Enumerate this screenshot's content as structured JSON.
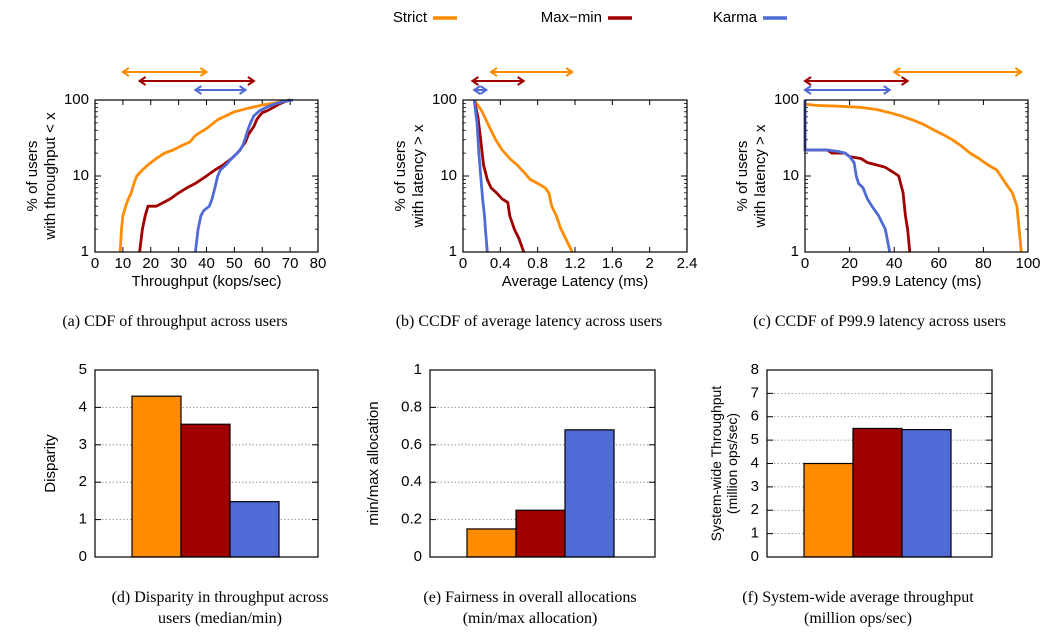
{
  "colors": {
    "strict": "#ff8c00",
    "maxmin": "#a00000",
    "karma": "#4f6bd6",
    "grid": "#888888"
  },
  "legend": [
    {
      "name": "Strict",
      "color": "#ff8c00"
    },
    {
      "name": "Max−min",
      "color": "#a00000"
    },
    {
      "name": "Karma",
      "color": "#4f6bd6"
    }
  ],
  "captions": {
    "a": [
      "(a)  CDF of throughput across users"
    ],
    "b": [
      "(b)  CCDF of average latency across users"
    ],
    "c": [
      "(c)  CCDF of P99.9 latency across users"
    ],
    "d": [
      "(d)  Disparity in throughput across",
      "users (median/min)"
    ],
    "e": [
      "(e)  Fairness in overall allocations",
      "(min/max allocation)"
    ],
    "f": [
      "(f)  System-wide average throughput",
      "(million ops/sec)"
    ]
  },
  "chart_data": [
    {
      "id": "a",
      "type": "line",
      "log_y": true,
      "xlabel": "Throughput (kops/sec)",
      "ylabel": [
        "% of users",
        "with throughput  <  x"
      ],
      "xlim": [
        0,
        80
      ],
      "ylim": [
        1,
        100
      ],
      "xticks": [
        "0",
        "10",
        "20",
        "30",
        "40",
        "50",
        "60",
        "70",
        "80"
      ],
      "yticks": [
        "1",
        "10",
        "100"
      ],
      "ranges": [
        {
          "series": "Strict",
          "from": 10,
          "to": 40
        },
        {
          "series": "Max−min",
          "from": 16,
          "to": 57
        },
        {
          "series": "Karma",
          "from": 36,
          "to": 54
        }
      ],
      "series": [
        {
          "name": "Strict",
          "points": [
            [
              9,
              1
            ],
            [
              9.5,
              2
            ],
            [
              10,
              3
            ],
            [
              11,
              4
            ],
            [
              12,
              5
            ],
            [
              13,
              6
            ],
            [
              14,
              8
            ],
            [
              15,
              10
            ],
            [
              17,
              12
            ],
            [
              19,
              14
            ],
            [
              22,
              17
            ],
            [
              25,
              20
            ],
            [
              28,
              22
            ],
            [
              31,
              25
            ],
            [
              34,
              28
            ],
            [
              36,
              34
            ],
            [
              38,
              38
            ],
            [
              40,
              42
            ],
            [
              42,
              48
            ],
            [
              44,
              55
            ],
            [
              47,
              62
            ],
            [
              50,
              70
            ],
            [
              55,
              78
            ],
            [
              60,
              86
            ],
            [
              65,
              92
            ],
            [
              68,
              97
            ],
            [
              70,
              100
            ]
          ]
        },
        {
          "name": "Max−min",
          "points": [
            [
              16,
              1
            ],
            [
              17,
              2
            ],
            [
              18,
              3
            ],
            [
              19,
              4
            ],
            [
              22,
              4
            ],
            [
              27,
              5
            ],
            [
              30,
              6
            ],
            [
              33,
              7
            ],
            [
              36,
              8
            ],
            [
              40,
              10
            ],
            [
              43,
              12
            ],
            [
              46,
              14
            ],
            [
              49,
              17
            ],
            [
              51,
              20
            ],
            [
              52,
              22
            ],
            [
              53,
              25
            ],
            [
              54,
              28
            ],
            [
              55,
              35
            ],
            [
              57,
              45
            ],
            [
              58,
              55
            ],
            [
              59,
              62
            ],
            [
              60,
              68
            ],
            [
              62,
              73
            ],
            [
              64,
              80
            ],
            [
              66,
              88
            ],
            [
              68,
              95
            ],
            [
              70,
              100
            ]
          ]
        },
        {
          "name": "Karma",
          "points": [
            [
              36,
              1
            ],
            [
              37,
              2
            ],
            [
              38,
              3
            ],
            [
              39,
              3.5
            ],
            [
              41,
              4
            ],
            [
              42,
              5
            ],
            [
              43,
              7
            ],
            [
              44,
              10
            ],
            [
              45,
              12
            ],
            [
              47,
              14
            ],
            [
              49,
              17
            ],
            [
              51,
              20
            ],
            [
              52,
              22
            ],
            [
              53,
              25
            ],
            [
              54,
              32
            ],
            [
              55,
              42
            ],
            [
              56,
              52
            ],
            [
              57,
              62
            ],
            [
              59,
              72
            ],
            [
              62,
              82
            ],
            [
              65,
              90
            ],
            [
              68,
              96
            ],
            [
              71,
              100
            ]
          ]
        }
      ]
    },
    {
      "id": "b",
      "type": "line",
      "log_y": true,
      "xlabel": "Average Latency (ms)",
      "ylabel": [
        "% of users",
        "with latency  >  x"
      ],
      "xlim": [
        0,
        2.4
      ],
      "ylim": [
        1,
        100
      ],
      "xticks": [
        "0",
        "0.4",
        "0.8",
        "1.2",
        "1.6",
        "2",
        "2.4"
      ],
      "yticks": [
        "1",
        "10",
        "100"
      ],
      "ranges": [
        {
          "series": "Strict",
          "from": 0.3,
          "to": 1.17
        },
        {
          "series": "Max−min",
          "from": 0.1,
          "to": 0.65
        },
        {
          "series": "Karma",
          "from": 0.12,
          "to": 0.25
        }
      ],
      "series": [
        {
          "name": "Strict",
          "points": [
            [
              0.12,
              100
            ],
            [
              0.2,
              72
            ],
            [
              0.28,
              45
            ],
            [
              0.35,
              30
            ],
            [
              0.42,
              22
            ],
            [
              0.5,
              17
            ],
            [
              0.58,
              14
            ],
            [
              0.66,
              11
            ],
            [
              0.72,
              9
            ],
            [
              0.8,
              8
            ],
            [
              0.88,
              7
            ],
            [
              0.92,
              6
            ],
            [
              0.95,
              4
            ],
            [
              1.0,
              3
            ],
            [
              1.05,
              2
            ],
            [
              1.1,
              1.5
            ],
            [
              1.17,
              1
            ]
          ]
        },
        {
          "name": "Max−min",
          "points": [
            [
              0.12,
              100
            ],
            [
              0.16,
              60
            ],
            [
              0.19,
              30
            ],
            [
              0.22,
              14
            ],
            [
              0.26,
              9
            ],
            [
              0.3,
              7
            ],
            [
              0.36,
              6
            ],
            [
              0.42,
              5
            ],
            [
              0.48,
              4.5
            ],
            [
              0.5,
              3
            ],
            [
              0.55,
              2
            ],
            [
              0.6,
              1.5
            ],
            [
              0.65,
              1
            ]
          ]
        },
        {
          "name": "Karma",
          "points": [
            [
              0.12,
              100
            ],
            [
              0.15,
              50
            ],
            [
              0.17,
              20
            ],
            [
              0.19,
              10
            ],
            [
              0.21,
              5
            ],
            [
              0.23,
              3
            ],
            [
              0.24,
              2
            ],
            [
              0.26,
              1
            ]
          ]
        }
      ]
    },
    {
      "id": "c",
      "type": "line",
      "log_y": true,
      "xlabel": "P99.9 Latency (ms)",
      "ylabel": [
        "% of users",
        "with latency  >  x"
      ],
      "xlim": [
        0,
        100
      ],
      "ylim": [
        1,
        100
      ],
      "xticks": [
        "0",
        "20",
        "40",
        "60",
        "80",
        "100"
      ],
      "yticks": [
        "1",
        "10",
        "100"
      ],
      "ranges": [
        {
          "series": "Strict",
          "from": 40,
          "to": 97
        },
        {
          "series": "Max−min",
          "from": 0,
          "to": 46
        },
        {
          "series": "Karma",
          "from": 0,
          "to": 38
        }
      ],
      "series": [
        {
          "name": "Strict",
          "points": [
            [
              0,
              100
            ],
            [
              0,
              88
            ],
            [
              5,
              85
            ],
            [
              15,
              83
            ],
            [
              25,
              80
            ],
            [
              32,
              75
            ],
            [
              38,
              68
            ],
            [
              43,
              62
            ],
            [
              48,
              55
            ],
            [
              53,
              48
            ],
            [
              58,
              40
            ],
            [
              62,
              35
            ],
            [
              66,
              30
            ],
            [
              70,
              25
            ],
            [
              74,
              20
            ],
            [
              78,
              17
            ],
            [
              82,
              14
            ],
            [
              86,
              12
            ],
            [
              90,
              8
            ],
            [
              93,
              6
            ],
            [
              95,
              4
            ],
            [
              96,
              2
            ],
            [
              97,
              1
            ]
          ]
        },
        {
          "name": "Max−min",
          "points": [
            [
              0,
              100
            ],
            [
              0,
              22
            ],
            [
              10,
              22
            ],
            [
              12,
              20
            ],
            [
              18,
              20
            ],
            [
              20,
              18
            ],
            [
              25,
              17
            ],
            [
              28,
              15
            ],
            [
              32,
              14
            ],
            [
              36,
              13
            ],
            [
              40,
              11
            ],
            [
              42,
              10
            ],
            [
              44,
              6
            ],
            [
              45,
              3
            ],
            [
              46,
              2
            ],
            [
              47,
              1
            ]
          ]
        },
        {
          "name": "Karma",
          "points": [
            [
              0,
              100
            ],
            [
              0,
              22
            ],
            [
              10,
              22
            ],
            [
              15,
              21
            ],
            [
              18,
              20
            ],
            [
              20,
              18
            ],
            [
              22,
              15
            ],
            [
              23,
              10
            ],
            [
              24,
              8
            ],
            [
              26,
              7
            ],
            [
              28,
              5
            ],
            [
              30,
              4
            ],
            [
              33,
              3
            ],
            [
              36,
              2
            ],
            [
              38,
              1
            ]
          ]
        }
      ]
    },
    {
      "id": "d",
      "type": "bar",
      "ylabel": "Disparity",
      "ylim": [
        0,
        5
      ],
      "yticks": [
        "0",
        "1",
        "2",
        "3",
        "4",
        "5"
      ],
      "categories": [
        "Strict",
        "Max−min",
        "Karma"
      ],
      "values": [
        4.3,
        3.55,
        1.48
      ]
    },
    {
      "id": "e",
      "type": "bar",
      "ylabel": "min/max allocation",
      "ylim": [
        0,
        1
      ],
      "yticks": [
        "0",
        "0.2",
        "0.4",
        "0.6",
        "0.8",
        "1"
      ],
      "categories": [
        "Strict",
        "Max−min",
        "Karma"
      ],
      "values": [
        0.15,
        0.25,
        0.68
      ]
    },
    {
      "id": "f",
      "type": "bar",
      "ylabel": [
        "System-wide Throughput",
        "(million ops/sec)"
      ],
      "ylim": [
        0,
        8
      ],
      "yticks": [
        "0",
        "1",
        "2",
        "3",
        "4",
        "5",
        "6",
        "7",
        "8"
      ],
      "categories": [
        "Strict",
        "Max−min",
        "Karma"
      ],
      "values": [
        4.0,
        5.5,
        5.45
      ]
    }
  ]
}
